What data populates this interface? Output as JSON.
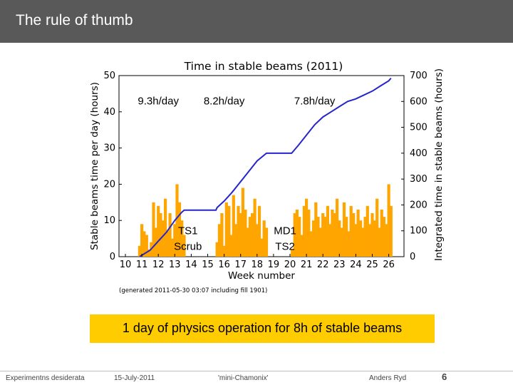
{
  "slide": {
    "title": "The rule of thumb",
    "highlight": "1 day of physics operation for 8h of stable beams",
    "highlight_color": "#ffcc00",
    "title_bar_color": "#595959"
  },
  "footer": {
    "left": "Experimentns desiderata",
    "date": "15-July-2011",
    "event": "'mini-Chamonix'",
    "author": "Anders Ryd",
    "page": "6"
  },
  "chart_data": {
    "type": "bar",
    "title": "Time in stable beams (2011)",
    "xlabel": "Week number",
    "ylabel": "Stable beams time per day (hours)",
    "y2label": "Integrated time in stable beams (hours)",
    "footnote": "(generated 2011-05-30 03:07 including fill 1901)",
    "xlim": [
      10,
      26.5
    ],
    "ylim": [
      0,
      50
    ],
    "y2lim": [
      0,
      700
    ],
    "xticks": [
      "10",
      "11",
      "12",
      "13",
      "14",
      "15",
      "16",
      "17",
      "18",
      "19",
      "20",
      "21",
      "22",
      "23",
      "24",
      "25",
      "26"
    ],
    "yticks": [
      "0",
      "10",
      "20",
      "30",
      "40",
      "50"
    ],
    "y2ticks": [
      "0",
      "100",
      "200",
      "300",
      "400",
      "500",
      "600",
      "700"
    ],
    "bar_color": "#ffa500",
    "line_color": "#2626cc",
    "annotations": [
      {
        "text": "9.3h/day",
        "x": 12.0,
        "y": 42
      },
      {
        "text": "8.2h/day",
        "x": 16.0,
        "y": 42
      },
      {
        "text": "7.8h/day",
        "x": 21.5,
        "y": 42
      },
      {
        "text": "TS1",
        "x": 13.8,
        "y": 6.2
      },
      {
        "text": "Scrub",
        "x": 13.8,
        "y": 1.9
      },
      {
        "text": "MD1",
        "x": 19.7,
        "y": 6.2
      },
      {
        "text": "TS2",
        "x": 19.7,
        "y": 1.9
      }
    ],
    "bars": {
      "name": "Stable beams time per day",
      "x": [
        10.86,
        11.0,
        11.14,
        11.29,
        11.43,
        11.57,
        11.71,
        11.86,
        12.0,
        12.14,
        12.29,
        12.43,
        12.57,
        12.71,
        12.86,
        13.0,
        13.14,
        13.29,
        13.43,
        13.57,
        15.57,
        15.71,
        15.86,
        16.0,
        16.14,
        16.29,
        16.43,
        16.57,
        16.71,
        16.86,
        17.0,
        17.14,
        17.29,
        17.43,
        17.57,
        17.71,
        17.86,
        18.0,
        18.14,
        18.29,
        18.43,
        18.57,
        20.14,
        20.29,
        20.43,
        20.57,
        20.71,
        20.86,
        21.0,
        21.14,
        21.29,
        21.43,
        21.57,
        21.71,
        21.86,
        22.0,
        22.14,
        22.29,
        22.43,
        22.57,
        22.71,
        22.86,
        23.0,
        23.14,
        23.29,
        23.43,
        23.57,
        23.71,
        23.86,
        24.0,
        24.14,
        24.29,
        24.43,
        24.57,
        24.71,
        24.86,
        25.0,
        25.14,
        25.29,
        25.43,
        25.57,
        25.71,
        25.86,
        26.0,
        26.14
      ],
      "values": [
        3,
        9,
        7,
        6,
        2,
        4,
        15,
        8,
        14,
        12,
        10,
        16,
        7,
        12,
        5,
        9,
        20,
        15,
        10,
        6,
        4,
        9,
        12,
        3,
        15,
        14,
        6,
        17,
        9,
        14,
        12,
        19,
        13,
        8,
        11,
        12,
        16,
        9,
        14,
        5,
        10,
        8,
        2,
        12,
        13,
        11,
        6,
        14,
        16,
        13,
        7,
        10,
        15,
        11,
        8,
        12,
        11,
        14,
        9,
        13,
        12,
        16,
        10,
        8,
        15,
        11,
        7,
        14,
        12,
        9,
        13,
        10,
        8,
        11,
        14,
        9,
        12,
        10,
        16,
        8,
        13,
        11,
        9,
        20,
        14
      ]
    },
    "cumulative": {
      "name": "Integrated time in stable beams",
      "x": [
        10.86,
        11.5,
        12.0,
        12.5,
        13.0,
        13.4,
        13.57,
        15.5,
        15.57,
        16.0,
        16.5,
        17.0,
        17.5,
        18.0,
        18.57,
        20.1,
        20.5,
        21.0,
        21.5,
        22.0,
        22.5,
        23.0,
        23.5,
        24.0,
        24.5,
        25.0,
        25.5,
        26.0,
        26.14
      ],
      "values": [
        0,
        25,
        60,
        95,
        140,
        170,
        180,
        180,
        190,
        215,
        250,
        290,
        330,
        370,
        400,
        400,
        430,
        470,
        510,
        540,
        560,
        580,
        600,
        610,
        625,
        640,
        660,
        680,
        690
      ]
    }
  }
}
